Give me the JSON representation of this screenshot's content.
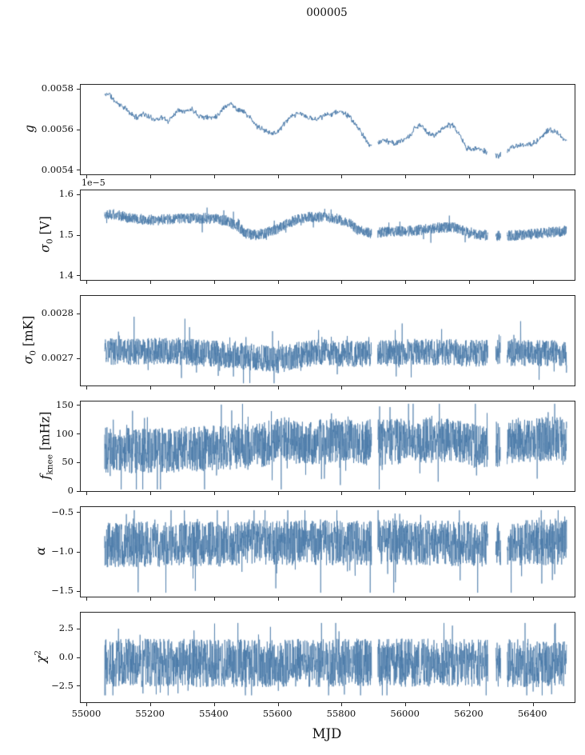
{
  "figure": {
    "title": "000005",
    "background": "#ffffff",
    "line_color": "#4878a8",
    "spine_color": "#262626"
  },
  "chart_data": {
    "type": "line",
    "title": "000005",
    "xlabel": "MJD",
    "legend": "none",
    "grid": false,
    "x_range": [
      54980,
      56530
    ],
    "series_x_range": [
      55055,
      56505
    ],
    "x_ticks": [
      {
        "value": 55000,
        "label": "55000"
      },
      {
        "value": 55200,
        "label": "55200"
      },
      {
        "value": 55400,
        "label": "55400"
      },
      {
        "value": 55600,
        "label": "55600"
      },
      {
        "value": 55800,
        "label": "55800"
      },
      {
        "value": 56000,
        "label": "56000"
      },
      {
        "value": 56200,
        "label": "56200"
      },
      {
        "value": 56400,
        "label": "56400"
      }
    ],
    "gaps": [
      [
        55893,
        55912
      ],
      [
        56258,
        56282
      ],
      [
        56298,
        56318
      ]
    ],
    "panels": [
      {
        "id": "g",
        "ylabel_text": "g",
        "ylabel": {
          "pre": "g",
          "sub": "",
          "sup": "",
          "post": ""
        },
        "ylim": [
          0.00538,
          0.00582
        ],
        "yticks": [
          {
            "value": 0.0054,
            "label": "0.0054"
          },
          {
            "value": 0.0056,
            "label": "0.0056"
          },
          {
            "value": 0.0058,
            "label": "0.0058"
          }
        ],
        "offset_text": "",
        "seed": 11,
        "n_points": 1100,
        "line_width": 1.0,
        "noise": {
          "type": "triangular",
          "amplitude": 1.6e-05,
          "spike_probability": 0,
          "spike_scale": 0
        },
        "clip": [
          0.0054,
          0.00581
        ],
        "envelope_center": [
          [
            55058,
            0.00577
          ],
          [
            55068,
            0.00578
          ],
          [
            55080,
            0.00575
          ],
          [
            55095,
            0.00573
          ],
          [
            55115,
            0.00571
          ],
          [
            55135,
            0.00568
          ],
          [
            55155,
            0.00566
          ],
          [
            55175,
            0.00568
          ],
          [
            55195,
            0.00566
          ],
          [
            55215,
            0.00565
          ],
          [
            55235,
            0.00566
          ],
          [
            55255,
            0.00564
          ],
          [
            55275,
            0.00568
          ],
          [
            55290,
            0.0057
          ],
          [
            55310,
            0.00569
          ],
          [
            55330,
            0.0057
          ],
          [
            55350,
            0.00567
          ],
          [
            55370,
            0.00566
          ],
          [
            55390,
            0.00566
          ],
          [
            55410,
            0.00567
          ],
          [
            55430,
            0.00571
          ],
          [
            55450,
            0.00573
          ],
          [
            55470,
            0.0057
          ],
          [
            55490,
            0.00569
          ],
          [
            55510,
            0.00566
          ],
          [
            55530,
            0.00562
          ],
          [
            55550,
            0.0056
          ],
          [
            55570,
            0.00559
          ],
          [
            55590,
            0.00558
          ],
          [
            55610,
            0.00561
          ],
          [
            55630,
            0.00565
          ],
          [
            55650,
            0.00567
          ],
          [
            55670,
            0.00568
          ],
          [
            55690,
            0.00566
          ],
          [
            55710,
            0.00565
          ],
          [
            55730,
            0.00566
          ],
          [
            55750,
            0.00567
          ],
          [
            55770,
            0.00568
          ],
          [
            55790,
            0.00569
          ],
          [
            55810,
            0.00568
          ],
          [
            55830,
            0.00565
          ],
          [
            55850,
            0.00561
          ],
          [
            55870,
            0.00556
          ],
          [
            55890,
            0.00552
          ],
          [
            55910,
            0.00553
          ],
          [
            55930,
            0.00555
          ],
          [
            55950,
            0.00554
          ],
          [
            55970,
            0.00553
          ],
          [
            55990,
            0.00555
          ],
          [
            56010,
            0.00556
          ],
          [
            56030,
            0.00561
          ],
          [
            56050,
            0.00562
          ],
          [
            56070,
            0.00558
          ],
          [
            56090,
            0.00557
          ],
          [
            56110,
            0.0056
          ],
          [
            56130,
            0.00562
          ],
          [
            56150,
            0.00562
          ],
          [
            56170,
            0.00557
          ],
          [
            56190,
            0.00551
          ],
          [
            56210,
            0.0055
          ],
          [
            56230,
            0.00551
          ],
          [
            56250,
            0.00549
          ],
          [
            56270,
            0.00548
          ],
          [
            56290,
            0.00547
          ],
          [
            56310,
            0.00549
          ],
          [
            56330,
            0.00551
          ],
          [
            56350,
            0.00552
          ],
          [
            56370,
            0.00552
          ],
          [
            56390,
            0.00553
          ],
          [
            56410,
            0.00554
          ],
          [
            56430,
            0.00557
          ],
          [
            56450,
            0.0056
          ],
          [
            56470,
            0.00559
          ],
          [
            56490,
            0.00556
          ],
          [
            56505,
            0.00554
          ]
        ]
      },
      {
        "id": "sigma0-V",
        "ylabel_text": "σ₀ [V]",
        "ylabel": {
          "pre": "σ",
          "sub": "0",
          "sup": "",
          "post": " [V]"
        },
        "ylim": [
          1.39,
          1.61
        ],
        "yticks": [
          {
            "value": 1.4,
            "label": "1.4"
          },
          {
            "value": 1.5,
            "label": "1.5"
          },
          {
            "value": 1.6,
            "label": "1.6"
          }
        ],
        "offset_text": "1e−5",
        "seed": 22,
        "n_points": 2400,
        "line_width": 0.7,
        "noise": {
          "type": "uniform",
          "amplitude": 0.013,
          "spike_probability": 0.03,
          "spike_scale": 1.8
        },
        "clip": [
          1.455,
          1.585
        ],
        "envelope_center": [
          [
            55058,
            1.553
          ],
          [
            55090,
            1.55
          ],
          [
            55130,
            1.543
          ],
          [
            55170,
            1.539
          ],
          [
            55210,
            1.537
          ],
          [
            55250,
            1.539
          ],
          [
            55290,
            1.541
          ],
          [
            55330,
            1.542
          ],
          [
            55370,
            1.541
          ],
          [
            55410,
            1.539
          ],
          [
            55440,
            1.534
          ],
          [
            55470,
            1.522
          ],
          [
            55500,
            1.504
          ],
          [
            55530,
            1.5
          ],
          [
            55560,
            1.505
          ],
          [
            55590,
            1.513
          ],
          [
            55620,
            1.524
          ],
          [
            55660,
            1.539
          ],
          [
            55700,
            1.545
          ],
          [
            55740,
            1.544
          ],
          [
            55780,
            1.541
          ],
          [
            55820,
            1.531
          ],
          [
            55850,
            1.512
          ],
          [
            55890,
            1.505
          ],
          [
            55930,
            1.507
          ],
          [
            55970,
            1.509
          ],
          [
            56010,
            1.51
          ],
          [
            56060,
            1.514
          ],
          [
            56110,
            1.519
          ],
          [
            56160,
            1.518
          ],
          [
            56200,
            1.504
          ],
          [
            56250,
            1.5
          ],
          [
            56300,
            1.498
          ],
          [
            56350,
            1.5
          ],
          [
            56400,
            1.503
          ],
          [
            56450,
            1.507
          ],
          [
            56505,
            1.51
          ]
        ]
      },
      {
        "id": "sigma0-mK",
        "ylabel_text": "σ₀ [mK]",
        "ylabel": {
          "pre": "σ",
          "sub": "0",
          "sup": "",
          "post": " [mK]"
        },
        "ylim": [
          0.00264,
          0.00284
        ],
        "yticks": [
          {
            "value": 0.0027,
            "label": "0.0027"
          },
          {
            "value": 0.0028,
            "label": "0.0028"
          }
        ],
        "offset_text": "",
        "seed": 33,
        "n_points": 2400,
        "line_width": 0.7,
        "noise": {
          "type": "uniform",
          "amplitude": 3e-05,
          "spike_probability": 0.04,
          "spike_scale": 1.8
        },
        "clip": [
          0.002645,
          0.002805
        ],
        "envelope_center": [
          [
            55058,
            0.002715
          ],
          [
            55150,
            0.002716
          ],
          [
            55250,
            0.002717
          ],
          [
            55350,
            0.002713
          ],
          [
            55450,
            0.002708
          ],
          [
            55550,
            0.002701
          ],
          [
            55600,
            0.002696
          ],
          [
            55650,
            0.002706
          ],
          [
            55720,
            0.002714
          ],
          [
            55800,
            0.002712
          ],
          [
            55900,
            0.00271
          ],
          [
            56000,
            0.002714
          ],
          [
            56100,
            0.002715
          ],
          [
            56200,
            0.002712
          ],
          [
            56300,
            0.002714
          ],
          [
            56400,
            0.002712
          ],
          [
            56505,
            0.002714
          ]
        ]
      },
      {
        "id": "fknee",
        "ylabel_text": "f knee [mHz]",
        "ylabel": {
          "pre": "f",
          "sub": "knee",
          "sup": "",
          "post": " [mHz]"
        },
        "ylim": [
          0,
          157
        ],
        "yticks": [
          {
            "value": 0,
            "label": "0"
          },
          {
            "value": 50,
            "label": "50"
          },
          {
            "value": 100,
            "label": "100"
          },
          {
            "value": 150,
            "label": "150"
          }
        ],
        "offset_text": "",
        "seed": 44,
        "n_points": 2400,
        "line_width": 0.7,
        "noise": {
          "type": "uniform",
          "amplitude": 40,
          "spike_probability": 0.06,
          "spike_scale": 1.5
        },
        "clip": [
          3,
          153
        ],
        "envelope_center": [
          [
            55058,
            72
          ],
          [
            55150,
            70
          ],
          [
            55250,
            72
          ],
          [
            55350,
            74
          ],
          [
            55450,
            77
          ],
          [
            55550,
            82
          ],
          [
            55620,
            90
          ],
          [
            55700,
            85
          ],
          [
            55780,
            88
          ],
          [
            55860,
            86
          ],
          [
            55940,
            86
          ],
          [
            56020,
            88
          ],
          [
            56100,
            90
          ],
          [
            56180,
            84
          ],
          [
            56240,
            76
          ],
          [
            56300,
            84
          ],
          [
            56360,
            90
          ],
          [
            56420,
            92
          ],
          [
            56505,
            89
          ]
        ]
      },
      {
        "id": "alpha",
        "ylabel_text": "α",
        "ylabel": {
          "pre": "α",
          "sub": "",
          "sup": "",
          "post": ""
        },
        "ylim": [
          -1.57,
          -0.43
        ],
        "yticks": [
          {
            "value": -1.5,
            "label": "−1.5"
          },
          {
            "value": -1.0,
            "label": "−1.0"
          },
          {
            "value": -0.5,
            "label": "−0.5"
          }
        ],
        "offset_text": "",
        "seed": 55,
        "n_points": 2400,
        "line_width": 0.7,
        "noise": {
          "type": "uniform",
          "amplitude": 0.29,
          "spike_probability": 0.05,
          "spike_scale": 1.7
        },
        "clip": [
          -1.52,
          -0.47
        ],
        "envelope_center": [
          [
            55058,
            -0.92
          ],
          [
            55200,
            -0.9
          ],
          [
            55400,
            -0.9
          ],
          [
            55600,
            -0.88
          ],
          [
            55800,
            -0.88
          ],
          [
            56000,
            -0.88
          ],
          [
            56200,
            -0.9
          ],
          [
            56400,
            -0.88
          ],
          [
            56505,
            -0.88
          ]
        ]
      },
      {
        "id": "chi2",
        "ylabel_text": "χ²",
        "ylabel": {
          "pre": "χ",
          "sub": "",
          "sup": "2",
          "post": ""
        },
        "ylim": [
          -3.9,
          3.9
        ],
        "yticks": [
          {
            "value": -2.5,
            "label": "−2.5"
          },
          {
            "value": 0.0,
            "label": "0.0"
          },
          {
            "value": 2.5,
            "label": "2.5"
          }
        ],
        "offset_text": "",
        "seed": 66,
        "n_points": 2400,
        "line_width": 0.7,
        "noise": {
          "type": "uniform",
          "amplitude": 2.1,
          "spike_probability": 0.04,
          "spike_scale": 1.4
        },
        "clip": [
          -3.3,
          3.0
        ],
        "envelope_center": [
          [
            55058,
            -0.45
          ],
          [
            55500,
            -0.5
          ],
          [
            56000,
            -0.45
          ],
          [
            56505,
            -0.5
          ]
        ]
      }
    ]
  }
}
